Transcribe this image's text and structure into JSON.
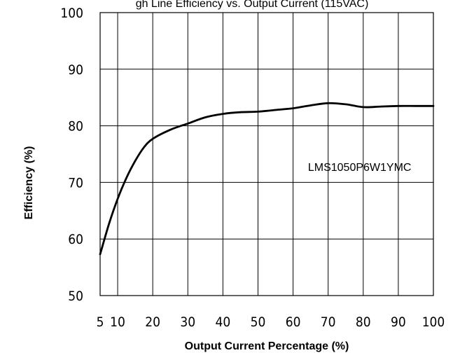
{
  "chart_data": {
    "type": "line",
    "title": "gh Line Efficiency vs. Output Current (115VAC)",
    "xlabel": "Output Current Percentage (%)",
    "ylabel": "Efficiency (%)",
    "xlim": [
      5,
      100
    ],
    "ylim": [
      50,
      100
    ],
    "x_ticks": [
      5,
      10,
      20,
      30,
      40,
      50,
      60,
      70,
      80,
      90,
      100
    ],
    "y_ticks": [
      50,
      60,
      70,
      80,
      90,
      100
    ],
    "grid": true,
    "series": [
      {
        "name": "LMS1050P6W1YMC",
        "x": [
          5,
          7.5,
          10,
          12.5,
          15,
          17.5,
          20,
          25,
          30,
          35,
          40,
          45,
          50,
          55,
          60,
          65,
          70,
          75,
          80,
          85,
          90,
          95,
          100
        ],
        "y": [
          57.3,
          62.6,
          67.1,
          70.8,
          73.8,
          76.2,
          77.7,
          79.3,
          80.4,
          81.5,
          82.1,
          82.4,
          82.5,
          82.8,
          83.1,
          83.6,
          84.0,
          83.8,
          83.3,
          83.4,
          83.5,
          83.5,
          83.5
        ],
        "color": "#000000"
      }
    ],
    "annotations": [
      {
        "text": "LMS1050P6W1YMC",
        "x": 70,
        "y": 72
      }
    ]
  }
}
